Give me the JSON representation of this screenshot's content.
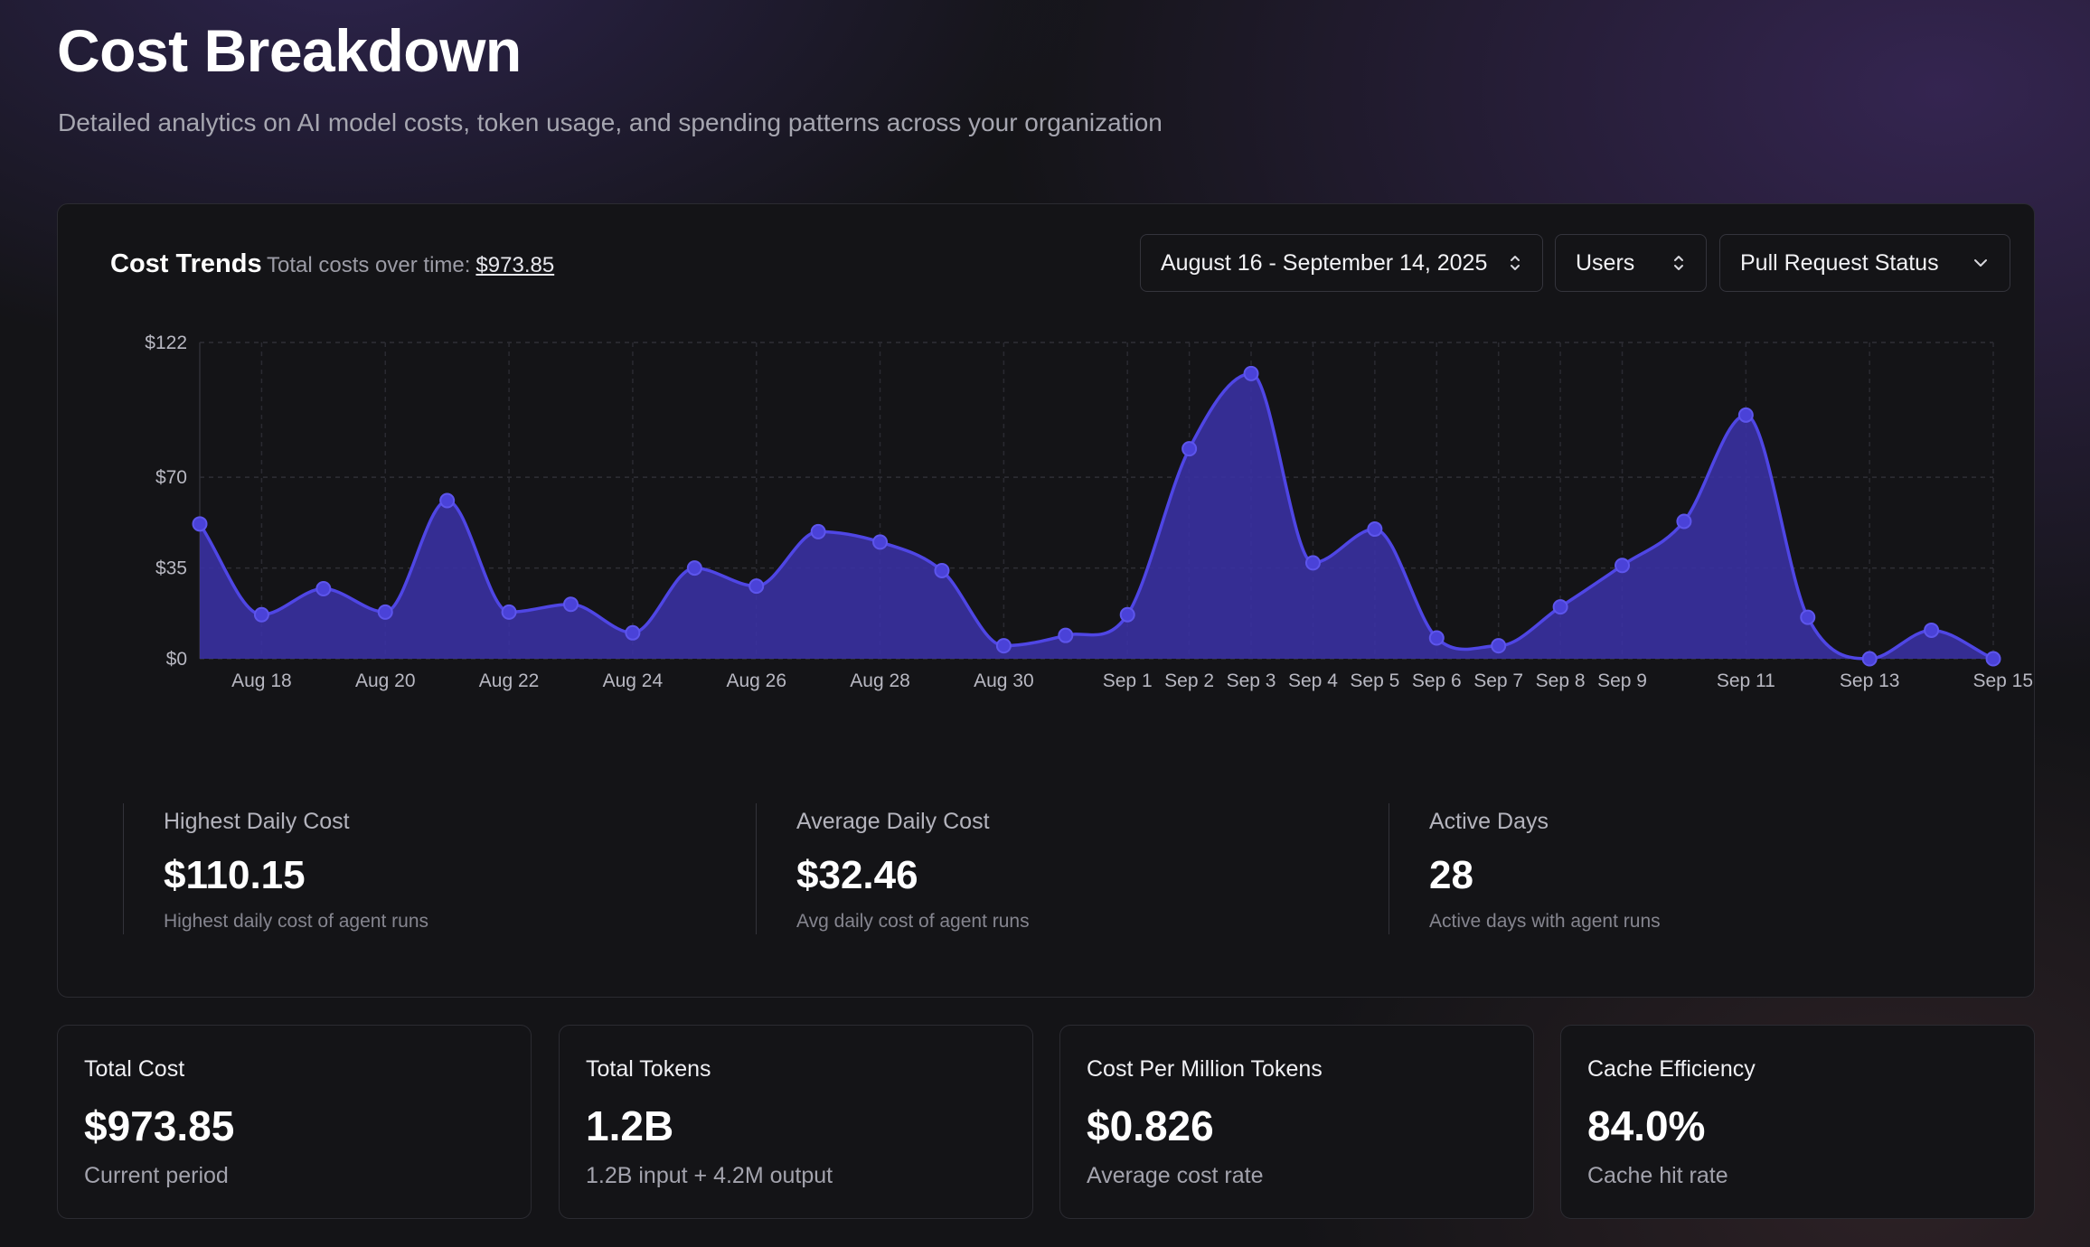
{
  "header": {
    "title": "Cost Breakdown",
    "subtitle": "Detailed analytics on AI model costs, token usage, and spending patterns across your organization"
  },
  "trends": {
    "title": "Cost Trends",
    "subtitle_label": "Total costs over time:",
    "total": "$973.85",
    "date_range": "August 16 - September 14, 2025",
    "group_by": "Users",
    "filter": "Pull Request Status"
  },
  "chart_data": {
    "type": "area",
    "x": [
      "Aug 17",
      "Aug 18",
      "Aug 19",
      "Aug 20",
      "Aug 21",
      "Aug 22",
      "Aug 23",
      "Aug 24",
      "Aug 25",
      "Aug 26",
      "Aug 27",
      "Aug 28",
      "Aug 29",
      "Aug 30",
      "Aug 31",
      "Sep 1",
      "Sep 2",
      "Sep 3",
      "Sep 4",
      "Sep 5",
      "Sep 6",
      "Sep 7",
      "Sep 8",
      "Sep 9",
      "Sep 10",
      "Sep 11",
      "Sep 12",
      "Sep 13",
      "Sep 14",
      "Sep 15"
    ],
    "values": [
      52,
      17,
      27,
      18,
      61,
      18,
      21,
      10,
      35,
      28,
      49,
      45,
      34,
      5,
      9,
      17,
      81,
      110,
      37,
      50,
      8,
      5,
      20,
      36,
      53,
      94,
      16,
      0,
      11,
      0
    ],
    "tick_labels": [
      "Aug 18",
      "Aug 20",
      "Aug 22",
      "Aug 24",
      "Aug 26",
      "Aug 28",
      "Aug 30",
      "Sep 1",
      "Sep 2",
      "Sep 3",
      "Sep 4",
      "Sep 5",
      "Sep 6",
      "Sep 7",
      "Sep 8",
      "Sep 9",
      "Sep 11",
      "Sep 13",
      "Sep 15"
    ],
    "y_ticks": [
      0,
      35,
      70,
      122
    ],
    "y_tick_labels": [
      "$0",
      "$35",
      "$70",
      "$122"
    ],
    "ylim": [
      0,
      122
    ],
    "grid": true,
    "color": "#4f46e5"
  },
  "stats": [
    {
      "label": "Highest Daily Cost",
      "value": "$110.15",
      "note": "Highest daily cost of agent runs"
    },
    {
      "label": "Average Daily Cost",
      "value": "$32.46",
      "note": "Avg daily cost of agent runs"
    },
    {
      "label": "Active Days",
      "value": "28",
      "note": "Active days with agent runs"
    }
  ],
  "metrics": [
    {
      "label": "Total Cost",
      "value": "$973.85",
      "note": "Current period"
    },
    {
      "label": "Total Tokens",
      "value": "1.2B",
      "note": "1.2B input + 4.2M output"
    },
    {
      "label": "Cost Per Million Tokens",
      "value": "$0.826",
      "note": "Average cost rate"
    },
    {
      "label": "Cache Efficiency",
      "value": "84.0%",
      "note": "Cache hit rate"
    }
  ]
}
